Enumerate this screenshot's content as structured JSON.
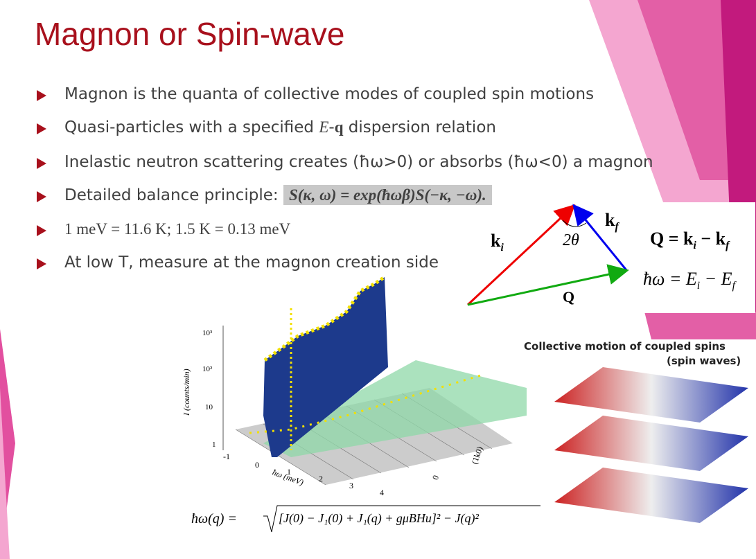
{
  "title": "Magnon or Spin-wave",
  "bullets": [
    [
      "Magnon is the quanta of collective modes of coupled spin motions"
    ],
    [
      "Quasi-particles with a specified ",
      "E",
      "-",
      "q",
      " dispersion relation"
    ],
    [
      "Inelastic neutron scattering creates (ħω>0) or absorbs (ħω<0) a magnon"
    ],
    [
      "Detailed balance principle:",
      "S(κ, ω) = exp(ħωβ)S(−κ, −ω)."
    ],
    [
      "1 meV = 11.6 K; 1.5 K = 0.13 meV"
    ],
    [
      "At low T, measure at the magnon creation side"
    ]
  ],
  "scattering_diagram": {
    "k_i": [
      "k",
      "i"
    ],
    "angle": "2θ",
    "k_f": [
      "k",
      "f"
    ],
    "Q": "Q",
    "momentum_equation": [
      "Q = k",
      "i",
      " − k",
      "f"
    ],
    "energy_equation": [
      "ħω = E",
      "i",
      " − E",
      "f"
    ]
  },
  "plot": {
    "y_label": "I (counts/min)",
    "y_ticks": [
      "10³",
      "10²",
      "10",
      "1"
    ],
    "x_label": "ħω (meV)",
    "x_ticks": [
      "-1",
      "0",
      "1",
      "2",
      "3",
      "4"
    ],
    "z_label": "(1k0)",
    "z_ticks": [
      "0"
    ]
  },
  "spin_waves": [
    "Collective motion of coupled spins",
    "(spin waves)"
  ],
  "dispersion": {
    "lhs": "ħω(q) =",
    "radicand": "[J(0) − J₁(0) + J₁(q) + gμBHu]² − J(q)²"
  }
}
